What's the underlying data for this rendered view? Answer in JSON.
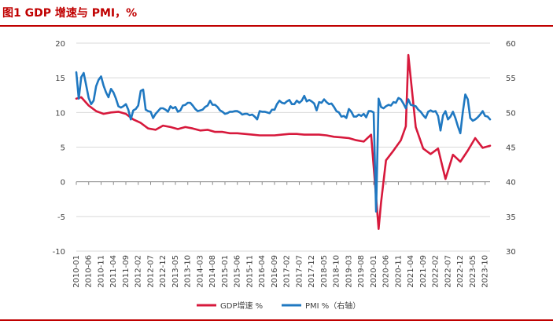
{
  "figure_title": "图1 GDP 增速与 PMI，%",
  "colors": {
    "accent": "#c00000",
    "gdp": "#d7193c",
    "pmi": "#1f78c1",
    "grid": "#d9d9d9",
    "axis": "#404040"
  },
  "chart_data": {
    "type": "line",
    "title": "图1 GDP 增速与 PMI，%",
    "xlabel": "",
    "ylabel": "",
    "y_left_lim": [
      -10,
      20
    ],
    "y_right_lim": [
      30,
      60
    ],
    "y_left_ticks": [
      "20",
      "15",
      "10",
      "5",
      "0",
      "-5",
      "-10"
    ],
    "y_right_ticks": [
      "60",
      "55",
      "50",
      "45",
      "40",
      "35",
      "30"
    ],
    "grid": "horizontal",
    "legend_position": "bottom",
    "x_start": "2010-01",
    "x_end": "2023-12",
    "x_tick_labels": [
      "2010-01",
      "2010-06",
      "2010-11",
      "2011-04",
      "2011-09",
      "2012-02",
      "2012-07",
      "2012-12",
      "2013-05",
      "2013-10",
      "2014-03",
      "2014-08",
      "2015-01",
      "2015-06",
      "2015-11",
      "2016-04",
      "2016-09",
      "2017-02",
      "2017-07",
      "2017-12",
      "2018-05",
      "2018-10",
      "2019-03",
      "2019-08",
      "2020-01",
      "2020-06",
      "2020-11",
      "2021-04",
      "2021-09",
      "2022-02",
      "2022-07",
      "2022-12",
      "2023-05",
      "2023-10"
    ],
    "series": [
      {
        "name": "GDP增速 %",
        "axis": "left",
        "color": "#d7193c",
        "points": [
          [
            "2010-01",
            12.0
          ],
          [
            "2010-03",
            12.2
          ],
          [
            "2010-06",
            11.0
          ],
          [
            "2010-09",
            10.2
          ],
          [
            "2010-12",
            9.8
          ],
          [
            "2011-03",
            10.0
          ],
          [
            "2011-06",
            10.1
          ],
          [
            "2011-09",
            9.8
          ],
          [
            "2011-12",
            9.0
          ],
          [
            "2012-03",
            8.5
          ],
          [
            "2012-06",
            7.7
          ],
          [
            "2012-09",
            7.5
          ],
          [
            "2012-12",
            8.1
          ],
          [
            "2013-03",
            7.9
          ],
          [
            "2013-06",
            7.6
          ],
          [
            "2013-09",
            7.9
          ],
          [
            "2013-12",
            7.7
          ],
          [
            "2014-03",
            7.4
          ],
          [
            "2014-06",
            7.5
          ],
          [
            "2014-09",
            7.2
          ],
          [
            "2014-12",
            7.2
          ],
          [
            "2015-03",
            7.0
          ],
          [
            "2015-06",
            7.0
          ],
          [
            "2015-09",
            6.9
          ],
          [
            "2015-12",
            6.8
          ],
          [
            "2016-03",
            6.7
          ],
          [
            "2016-06",
            6.7
          ],
          [
            "2016-09",
            6.7
          ],
          [
            "2016-12",
            6.8
          ],
          [
            "2017-03",
            6.9
          ],
          [
            "2017-06",
            6.9
          ],
          [
            "2017-09",
            6.8
          ],
          [
            "2017-12",
            6.8
          ],
          [
            "2018-03",
            6.8
          ],
          [
            "2018-06",
            6.7
          ],
          [
            "2018-09",
            6.5
          ],
          [
            "2018-12",
            6.4
          ],
          [
            "2019-03",
            6.3
          ],
          [
            "2019-06",
            6.0
          ],
          [
            "2019-09",
            5.8
          ],
          [
            "2019-12",
            6.8
          ],
          [
            "2020-03",
            -6.8
          ],
          [
            "2020-04",
            -3.0
          ],
          [
            "2020-06",
            3.1
          ],
          [
            "2020-09",
            4.5
          ],
          [
            "2020-12",
            6.0
          ],
          [
            "2021-02",
            8.0
          ],
          [
            "2021-03",
            18.3
          ],
          [
            "2021-06",
            7.9
          ],
          [
            "2021-09",
            4.8
          ],
          [
            "2021-12",
            4.0
          ],
          [
            "2022-03",
            4.8
          ],
          [
            "2022-06",
            0.4
          ],
          [
            "2022-09",
            3.9
          ],
          [
            "2022-12",
            2.9
          ],
          [
            "2023-03",
            4.5
          ],
          [
            "2023-06",
            6.3
          ],
          [
            "2023-09",
            4.9
          ],
          [
            "2023-12",
            5.2
          ]
        ]
      },
      {
        "name": "PMI %（右轴）",
        "axis": "right",
        "color": "#1f78c1",
        "points": [
          [
            "2010-01",
            55.8
          ],
          [
            "2010-02",
            52.0
          ],
          [
            "2010-03",
            55.1
          ],
          [
            "2010-04",
            55.7
          ],
          [
            "2010-05",
            53.9
          ],
          [
            "2010-06",
            52.1
          ],
          [
            "2010-07",
            51.2
          ],
          [
            "2010-08",
            51.7
          ],
          [
            "2010-09",
            53.8
          ],
          [
            "2010-10",
            54.7
          ],
          [
            "2010-11",
            55.2
          ],
          [
            "2010-12",
            53.9
          ],
          [
            "2011-01",
            52.9
          ],
          [
            "2011-02",
            52.2
          ],
          [
            "2011-03",
            53.4
          ],
          [
            "2011-04",
            52.9
          ],
          [
            "2011-05",
            52.0
          ],
          [
            "2011-06",
            50.9
          ],
          [
            "2011-07",
            50.7
          ],
          [
            "2011-08",
            50.9
          ],
          [
            "2011-09",
            51.2
          ],
          [
            "2011-10",
            50.4
          ],
          [
            "2011-11",
            49.0
          ],
          [
            "2011-12",
            50.3
          ],
          [
            "2012-01",
            50.5
          ],
          [
            "2012-02",
            51.0
          ],
          [
            "2012-03",
            53.1
          ],
          [
            "2012-04",
            53.3
          ],
          [
            "2012-05",
            50.4
          ],
          [
            "2012-06",
            50.2
          ],
          [
            "2012-07",
            50.1
          ],
          [
            "2012-08",
            49.2
          ],
          [
            "2012-09",
            49.8
          ],
          [
            "2012-10",
            50.2
          ],
          [
            "2012-11",
            50.6
          ],
          [
            "2012-12",
            50.6
          ],
          [
            "2013-01",
            50.4
          ],
          [
            "2013-02",
            50.1
          ],
          [
            "2013-03",
            50.9
          ],
          [
            "2013-04",
            50.6
          ],
          [
            "2013-05",
            50.8
          ],
          [
            "2013-06",
            50.1
          ],
          [
            "2013-07",
            50.3
          ],
          [
            "2013-08",
            51.0
          ],
          [
            "2013-09",
            51.1
          ],
          [
            "2013-10",
            51.4
          ],
          [
            "2013-11",
            51.4
          ],
          [
            "2013-12",
            51.0
          ],
          [
            "2014-01",
            50.5
          ],
          [
            "2014-02",
            50.2
          ],
          [
            "2014-03",
            50.3
          ],
          [
            "2014-04",
            50.4
          ],
          [
            "2014-05",
            50.8
          ],
          [
            "2014-06",
            51.0
          ],
          [
            "2014-07",
            51.7
          ],
          [
            "2014-08",
            51.1
          ],
          [
            "2014-09",
            51.1
          ],
          [
            "2014-10",
            50.8
          ],
          [
            "2014-11",
            50.3
          ],
          [
            "2014-12",
            50.1
          ],
          [
            "2015-01",
            49.8
          ],
          [
            "2015-02",
            49.9
          ],
          [
            "2015-03",
            50.1
          ],
          [
            "2015-04",
            50.1
          ],
          [
            "2015-05",
            50.2
          ],
          [
            "2015-06",
            50.2
          ],
          [
            "2015-07",
            50.0
          ],
          [
            "2015-08",
            49.7
          ],
          [
            "2015-09",
            49.8
          ],
          [
            "2015-10",
            49.8
          ],
          [
            "2015-11",
            49.6
          ],
          [
            "2015-12",
            49.7
          ],
          [
            "2016-01",
            49.4
          ],
          [
            "2016-02",
            49.0
          ],
          [
            "2016-03",
            50.2
          ],
          [
            "2016-04",
            50.1
          ],
          [
            "2016-05",
            50.1
          ],
          [
            "2016-06",
            50.0
          ],
          [
            "2016-07",
            49.9
          ],
          [
            "2016-08",
            50.4
          ],
          [
            "2016-09",
            50.4
          ],
          [
            "2016-10",
            51.2
          ],
          [
            "2016-11",
            51.7
          ],
          [
            "2016-12",
            51.4
          ],
          [
            "2017-01",
            51.3
          ],
          [
            "2017-02",
            51.6
          ],
          [
            "2017-03",
            51.8
          ],
          [
            "2017-04",
            51.2
          ],
          [
            "2017-05",
            51.2
          ],
          [
            "2017-06",
            51.7
          ],
          [
            "2017-07",
            51.4
          ],
          [
            "2017-08",
            51.7
          ],
          [
            "2017-09",
            52.4
          ],
          [
            "2017-10",
            51.6
          ],
          [
            "2017-11",
            51.8
          ],
          [
            "2017-12",
            51.6
          ],
          [
            "2018-01",
            51.3
          ],
          [
            "2018-02",
            50.3
          ],
          [
            "2018-03",
            51.5
          ],
          [
            "2018-04",
            51.4
          ],
          [
            "2018-05",
            51.9
          ],
          [
            "2018-06",
            51.5
          ],
          [
            "2018-07",
            51.2
          ],
          [
            "2018-08",
            51.3
          ],
          [
            "2018-09",
            50.8
          ],
          [
            "2018-10",
            50.2
          ],
          [
            "2018-11",
            50.0
          ],
          [
            "2018-12",
            49.4
          ],
          [
            "2019-01",
            49.5
          ],
          [
            "2019-02",
            49.2
          ],
          [
            "2019-03",
            50.5
          ],
          [
            "2019-04",
            50.1
          ],
          [
            "2019-05",
            49.4
          ],
          [
            "2019-06",
            49.4
          ],
          [
            "2019-07",
            49.7
          ],
          [
            "2019-08",
            49.5
          ],
          [
            "2019-09",
            49.8
          ],
          [
            "2019-10",
            49.3
          ],
          [
            "2019-11",
            50.2
          ],
          [
            "2019-12",
            50.2
          ],
          [
            "2020-01",
            50.0
          ],
          [
            "2020-02",
            35.7
          ],
          [
            "2020-03",
            52.0
          ],
          [
            "2020-04",
            50.8
          ],
          [
            "2020-05",
            50.6
          ],
          [
            "2020-06",
            50.9
          ],
          [
            "2020-07",
            51.1
          ],
          [
            "2020-08",
            51.0
          ],
          [
            "2020-09",
            51.5
          ],
          [
            "2020-10",
            51.4
          ],
          [
            "2020-11",
            52.1
          ],
          [
            "2020-12",
            51.9
          ],
          [
            "2021-01",
            51.3
          ],
          [
            "2021-02",
            50.6
          ],
          [
            "2021-03",
            51.9
          ],
          [
            "2021-04",
            51.1
          ],
          [
            "2021-05",
            51.0
          ],
          [
            "2021-06",
            50.9
          ],
          [
            "2021-07",
            50.4
          ],
          [
            "2021-08",
            50.1
          ],
          [
            "2021-09",
            49.6
          ],
          [
            "2021-10",
            49.2
          ],
          [
            "2021-11",
            50.1
          ],
          [
            "2021-12",
            50.3
          ],
          [
            "2022-01",
            50.1
          ],
          [
            "2022-02",
            50.2
          ],
          [
            "2022-03",
            49.5
          ],
          [
            "2022-04",
            47.4
          ],
          [
            "2022-05",
            49.6
          ],
          [
            "2022-06",
            50.2
          ],
          [
            "2022-07",
            49.0
          ],
          [
            "2022-08",
            49.4
          ],
          [
            "2022-09",
            50.1
          ],
          [
            "2022-10",
            49.2
          ],
          [
            "2022-11",
            48.0
          ],
          [
            "2022-12",
            47.0
          ],
          [
            "2023-01",
            50.1
          ],
          [
            "2023-02",
            52.6
          ],
          [
            "2023-03",
            51.9
          ],
          [
            "2023-04",
            49.2
          ],
          [
            "2023-05",
            48.8
          ],
          [
            "2023-06",
            49.0
          ],
          [
            "2023-07",
            49.3
          ],
          [
            "2023-08",
            49.7
          ],
          [
            "2023-09",
            50.2
          ],
          [
            "2023-10",
            49.5
          ],
          [
            "2023-11",
            49.4
          ],
          [
            "2023-12",
            49.0
          ]
        ]
      }
    ]
  }
}
